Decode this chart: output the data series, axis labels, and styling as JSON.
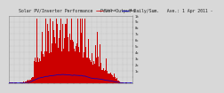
{
  "title": "Solar PV/Inverter Performance   Power Output Daily/Sum.   Ave.: 1 Apr 2011 - ",
  "bg_color": "#d8d8d8",
  "plot_bg": "#d8d8d8",
  "grid_color": "#aaaaaa",
  "bar_color": "#cc0000",
  "avg_color": "#0000cc",
  "ylim": [
    0,
    1100
  ],
  "ytick_labels": [
    "1k",
    "9c",
    "8c",
    "7c",
    "6c",
    "5c",
    "4c",
    "3c",
    "2c",
    "1c",
    ""
  ],
  "n_bars": 400,
  "title_fontsize": 3.5,
  "tick_fontsize": 2.8,
  "legend_pv_color": "#cc0000",
  "legend_avg_color": "#0000cc"
}
